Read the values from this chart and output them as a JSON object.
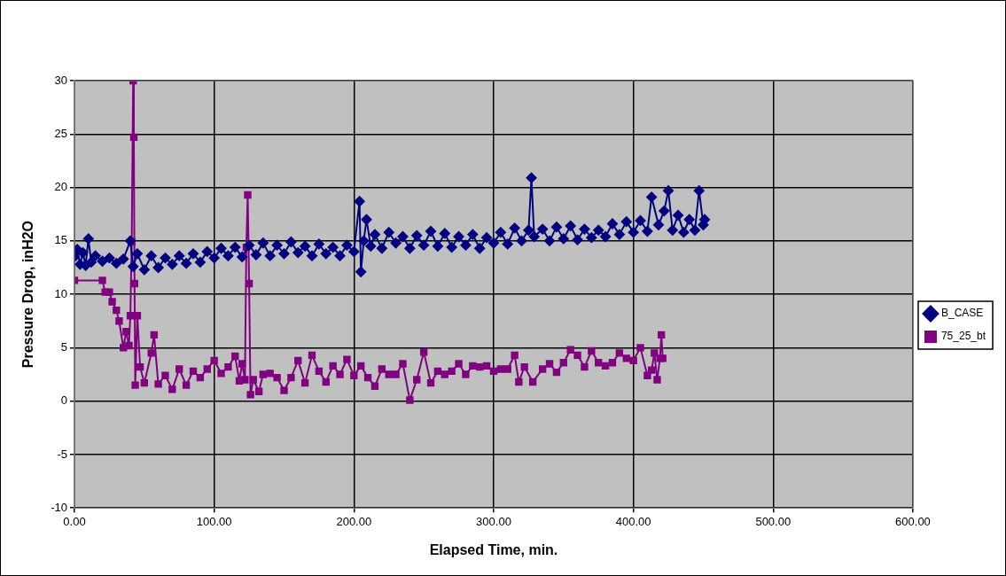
{
  "chart_data": {
    "type": "line",
    "xlabel": "Elapsed Time, min.",
    "ylabel": "Pressure Drop, inH2O",
    "xlim": [
      0,
      600
    ],
    "xticks": [
      {
        "value": 0,
        "label": "0.00"
      },
      {
        "value": 100,
        "label": "100.00"
      },
      {
        "value": 200,
        "label": "200.00"
      },
      {
        "value": 300,
        "label": "300.00"
      },
      {
        "value": 400,
        "label": "400.00"
      },
      {
        "value": 500,
        "label": "500.00"
      },
      {
        "value": 600,
        "label": "600.00"
      }
    ],
    "ylim": [
      -10,
      30
    ],
    "yticks": [
      -10,
      -5,
      0,
      5,
      10,
      15,
      20,
      25,
      30
    ],
    "grid": true,
    "legend": "right",
    "series": [
      {
        "name": "B_CASE",
        "color": "#000080",
        "marker": "diamond",
        "x": [
          0,
          2,
          4,
          6,
          8,
          10,
          12,
          15,
          20,
          25,
          30,
          35,
          40,
          42,
          45,
          50,
          55,
          60,
          65,
          70,
          75,
          80,
          85,
          90,
          95,
          100,
          105,
          110,
          115,
          120,
          125,
          130,
          135,
          140,
          145,
          150,
          155,
          160,
          165,
          170,
          175,
          180,
          185,
          190,
          195,
          200,
          204,
          205,
          207,
          209,
          212,
          215,
          220,
          225,
          230,
          235,
          240,
          245,
          250,
          255,
          260,
          265,
          270,
          275,
          280,
          285,
          290,
          295,
          300,
          305,
          310,
          315,
          320,
          325,
          327,
          329,
          335,
          340,
          345,
          350,
          355,
          360,
          365,
          370,
          375,
          380,
          385,
          390,
          395,
          400,
          405,
          410,
          413,
          418,
          422,
          425,
          428,
          432,
          436,
          440,
          444,
          447,
          450,
          451
        ],
        "values": [
          13.5,
          14.2,
          12.8,
          13.9,
          12.7,
          15.2,
          13.0,
          13.6,
          13.1,
          13.4,
          12.9,
          13.3,
          15.0,
          12.6,
          13.8,
          12.3,
          13.6,
          12.5,
          13.4,
          12.8,
          13.6,
          12.9,
          13.8,
          13.0,
          14.0,
          13.4,
          14.3,
          13.6,
          14.4,
          13.5,
          14.6,
          13.7,
          14.8,
          13.6,
          14.6,
          13.8,
          14.9,
          13.9,
          14.5,
          13.6,
          14.7,
          13.8,
          14.4,
          13.6,
          14.6,
          14.0,
          18.7,
          12.1,
          15.0,
          17.0,
          14.5,
          15.6,
          14.3,
          15.8,
          14.8,
          15.4,
          14.3,
          15.5,
          14.6,
          15.9,
          14.5,
          15.7,
          14.4,
          15.4,
          14.6,
          15.6,
          14.3,
          15.3,
          14.8,
          15.8,
          14.7,
          16.2,
          15.0,
          16.0,
          20.9,
          15.4,
          16.1,
          15.0,
          16.3,
          15.2,
          16.4,
          15.1,
          16.1,
          15.3,
          16.0,
          15.4,
          16.6,
          15.6,
          16.8,
          15.8,
          16.9,
          15.9,
          19.1,
          16.5,
          17.8,
          19.7,
          16.0,
          17.4,
          15.8,
          17.0,
          16.0,
          19.7,
          16.5,
          17.0
        ]
      },
      {
        "name": "75_25_bt",
        "color": "#800080",
        "marker": "square",
        "x": [
          0,
          20,
          22,
          25,
          27,
          30,
          32,
          35,
          37,
          39,
          40,
          41,
          42,
          42.5,
          43,
          43.5,
          45,
          47,
          50,
          55,
          57,
          60,
          65,
          70,
          75,
          80,
          85,
          90,
          95,
          100,
          105,
          110,
          115,
          118,
          120,
          122,
          123,
          124,
          125,
          126,
          128,
          132,
          135,
          140,
          145,
          150,
          155,
          160,
          165,
          170,
          175,
          180,
          185,
          190,
          195,
          200,
          205,
          210,
          215,
          220,
          225,
          230,
          235,
          240,
          245,
          250,
          255,
          260,
          265,
          270,
          275,
          280,
          285,
          290,
          295,
          300,
          305,
          310,
          315,
          318,
          322,
          328,
          335,
          340,
          345,
          350,
          355,
          360,
          365,
          370,
          375,
          380,
          385,
          390,
          395,
          400,
          405,
          410,
          413,
          415,
          417,
          419,
          420,
          421
        ],
        "values": [
          11.3,
          11.3,
          10.2,
          10.2,
          9.3,
          8.5,
          7.5,
          5.0,
          6.5,
          5.2,
          8.0,
          14.9,
          30,
          24.7,
          11,
          1.5,
          8.0,
          3.2,
          1.7,
          4.5,
          6.2,
          1.6,
          2.4,
          1.1,
          3.0,
          1.5,
          2.8,
          2.2,
          3.0,
          3.8,
          2.6,
          3.2,
          4.2,
          1.9,
          3.5,
          2.0,
          14.4,
          19.3,
          11,
          0.6,
          2.0,
          0.9,
          2.5,
          2.6,
          2.2,
          1.0,
          2.2,
          3.8,
          1.7,
          4.3,
          2.8,
          1.8,
          3.3,
          2.5,
          3.9,
          2.4,
          3.3,
          2.2,
          1.4,
          3.0,
          2.5,
          2.5,
          3.5,
          0.1,
          2.0,
          4.6,
          1.7,
          2.8,
          2.5,
          2.8,
          3.5,
          2.5,
          3.3,
          3.2,
          3.3,
          2.8,
          3.0,
          3.0,
          4.3,
          1.8,
          3.2,
          1.8,
          3.0,
          3.5,
          2.7,
          3.6,
          4.8,
          4.3,
          3.2,
          4.7,
          3.6,
          3.3,
          3.6,
          4.5,
          4.0,
          3.8,
          5.0,
          2.4,
          2.9,
          4.5,
          2.0,
          4.0,
          6.2,
          4.0
        ]
      }
    ]
  }
}
